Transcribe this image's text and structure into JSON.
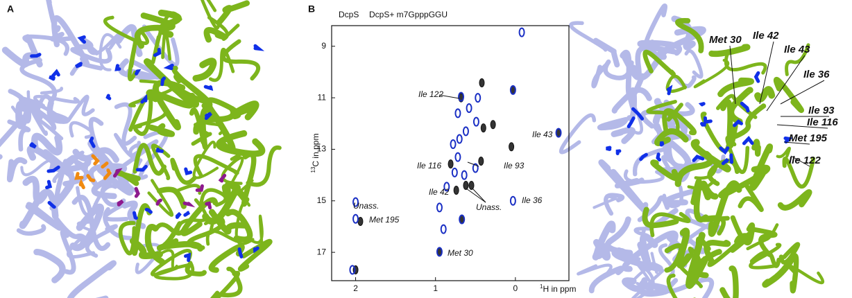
{
  "panel_labels": [
    "A",
    "B"
  ],
  "chart_data": {
    "type": "scatter",
    "x_label": {
      "sup": "1",
      "text": "H in ppm"
    },
    "y_label": {
      "sup": "13",
      "text": "C in ppm"
    },
    "xlim": [
      2.3,
      -0.67
    ],
    "ylim": [
      8.2,
      18.1
    ],
    "xticks": [
      2,
      1,
      0
    ],
    "yticks": [
      9,
      11,
      13,
      15,
      17
    ],
    "series": [
      {
        "name": "DcpS",
        "color": "#111111",
        "x": [
          1.94,
          2.0,
          0.95,
          0.67,
          -0.54,
          0.03,
          0.42,
          0.4,
          0.28,
          0.81,
          0.43,
          0.74,
          0.62,
          0.55,
          0.05,
          0.68
        ],
        "y": [
          15.8,
          17.68,
          16.98,
          15.72,
          12.36,
          10.7,
          10.42,
          12.17,
          12.04,
          13.57,
          13.46,
          14.59,
          14.4,
          14.4,
          12.9,
          11.0
        ]
      },
      {
        "name": "DcpS+ m7GpppGGU",
        "color": "#1a2fc4",
        "x": [
          -0.08,
          2.0,
          2.0,
          2.04,
          0.95,
          0.67,
          0.95,
          -0.54,
          0.03,
          0.03,
          0.68,
          0.49,
          0.72,
          0.62,
          0.78,
          0.72,
          0.5,
          0.64,
          0.76,
          0.47,
          0.86,
          0.7,
          0.9,
          0.58
        ],
        "y": [
          8.46,
          15.05,
          15.7,
          17.68,
          16.98,
          15.72,
          15.26,
          12.36,
          15.0,
          10.7,
          10.96,
          11.93,
          11.6,
          12.3,
          12.8,
          13.3,
          13.73,
          14.0,
          13.9,
          11.0,
          14.45,
          12.6,
          16.1,
          11.4
        ]
      }
    ],
    "annotations": [
      "Ile 122",
      "Ile 43",
      "Ile 116",
      "Ile 93",
      "Ile 42",
      "Unass.",
      "Ile 36",
      "Unass.",
      "Met 195",
      "Met 30"
    ]
  },
  "structure_labels": [
    "Met 30",
    "Ile 42",
    "Ile 43",
    "Ile 36",
    "Ile 93",
    "Ile 116",
    "Met 195",
    "Ile 122"
  ]
}
